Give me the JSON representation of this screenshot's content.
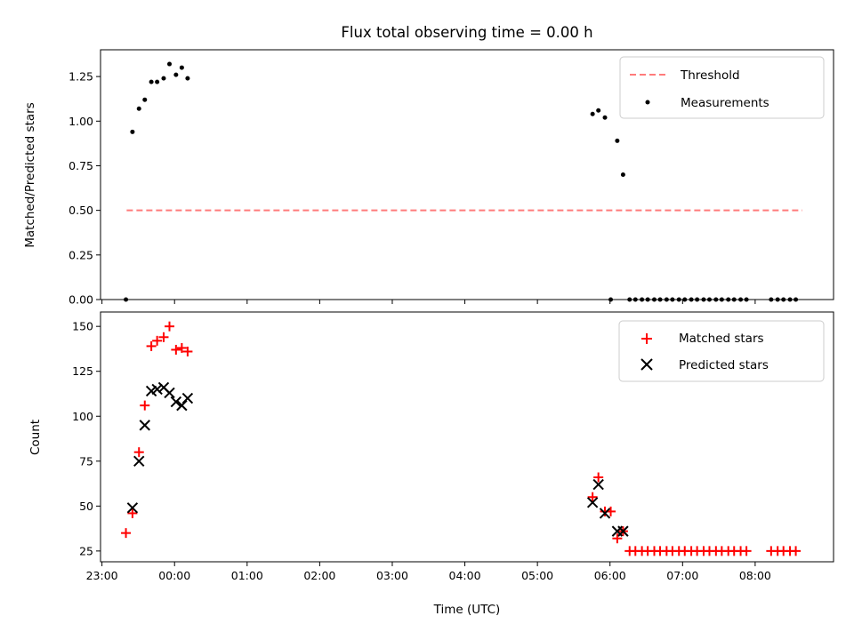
{
  "chart_data": [
    {
      "type": "scatter",
      "title": "Flux total observing time = 0.00 h",
      "xlabel": "",
      "ylabel": "Matched/Predicted stars",
      "x_unit": "hours relative to 00:00 UTC",
      "xlim": [
        -1.02,
        9.08
      ],
      "ylim": [
        0,
        1.4
      ],
      "yticks": [
        0.0,
        0.25,
        0.5,
        0.75,
        1.0,
        1.25
      ],
      "ytick_labels": [
        "0.00",
        "0.25",
        "0.50",
        "0.75",
        "1.00",
        "1.25"
      ],
      "legend": {
        "placement": "upper-right",
        "entries": [
          "Threshold",
          "Measurements"
        ]
      },
      "series": [
        {
          "name": "Threshold",
          "kind": "line",
          "style": "dashed",
          "color": "#ff7b7b",
          "x": [
            -0.66,
            8.65
          ],
          "y": [
            0.5,
            0.5
          ]
        },
        {
          "name": "Measurements",
          "kind": "scatter",
          "marker": "dot",
          "color": "#000000",
          "x": [
            -0.67,
            -0.58,
            -0.49,
            -0.41,
            -0.32,
            -0.24,
            -0.15,
            -0.07,
            0.02,
            0.1,
            0.18,
            5.76,
            5.84,
            5.93,
            6.01,
            6.1,
            6.18,
            6.27,
            6.35,
            6.44,
            6.52,
            6.61,
            6.69,
            6.78,
            6.86,
            6.95,
            7.03,
            7.12,
            7.2,
            7.29,
            7.37,
            7.46,
            7.54,
            7.63,
            7.71,
            7.8,
            7.88,
            8.22,
            8.31,
            8.39,
            8.48,
            8.56
          ],
          "y": [
            0.0,
            0.94,
            1.07,
            1.12,
            1.22,
            1.22,
            1.24,
            1.32,
            1.26,
            1.3,
            1.24,
            1.04,
            1.06,
            1.02,
            0.0,
            0.89,
            0.7,
            0.0,
            0.0,
            0.0,
            0.0,
            0.0,
            0.0,
            0.0,
            0.0,
            0.0,
            0.0,
            0.0,
            0.0,
            0.0,
            0.0,
            0.0,
            0.0,
            0.0,
            0.0,
            0.0,
            0.0,
            0.0,
            0.0,
            0.0,
            0.0,
            0.0
          ]
        }
      ]
    },
    {
      "type": "scatter",
      "title": "",
      "xlabel": "Time (UTC)",
      "ylabel": "Count",
      "x_unit": "hours relative to 00:00 UTC",
      "xlim": [
        -1.02,
        9.08
      ],
      "ylim": [
        19,
        158
      ],
      "yticks": [
        25,
        50,
        75,
        100,
        125,
        150
      ],
      "ytick_labels": [
        "25",
        "50",
        "75",
        "100",
        "125",
        "150"
      ],
      "xticks": [
        -1,
        0,
        1,
        2,
        3,
        4,
        5,
        6,
        7,
        8
      ],
      "xtick_labels": [
        "23:00",
        "00:00",
        "01:00",
        "02:00",
        "03:00",
        "04:00",
        "05:00",
        "06:00",
        "07:00",
        "08:00"
      ],
      "legend": {
        "placement": "upper-right",
        "entries": [
          "Matched stars",
          "Predicted stars"
        ]
      },
      "series": [
        {
          "name": "Matched stars",
          "marker": "plus",
          "color": "#ff0000",
          "x": [
            -0.67,
            -0.58,
            -0.49,
            -0.41,
            -0.32,
            -0.24,
            -0.15,
            -0.07,
            0.02,
            0.1,
            0.18,
            5.76,
            5.84,
            5.93,
            6.01,
            6.1,
            6.18,
            6.27,
            6.35,
            6.44,
            6.52,
            6.61,
            6.69,
            6.78,
            6.86,
            6.95,
            7.03,
            7.12,
            7.2,
            7.29,
            7.37,
            7.46,
            7.54,
            7.63,
            7.71,
            7.8,
            7.88,
            8.22,
            8.31,
            8.39,
            8.48,
            8.56
          ],
          "y": [
            35,
            46,
            80,
            106,
            139,
            142,
            144,
            150,
            137,
            138,
            136,
            55,
            66,
            47,
            47,
            32,
            36,
            25,
            25,
            25,
            25,
            25,
            25,
            25,
            25,
            25,
            25,
            25,
            25,
            25,
            25,
            25,
            25,
            25,
            25,
            25,
            25,
            25,
            25,
            25,
            25,
            25
          ]
        },
        {
          "name": "Predicted stars",
          "marker": "x",
          "color": "#000000",
          "x": [
            -0.58,
            -0.49,
            -0.41,
            -0.32,
            -0.24,
            -0.15,
            -0.07,
            0.02,
            0.1,
            0.18,
            5.76,
            5.84,
            5.93,
            6.1,
            6.18
          ],
          "y": [
            49,
            75,
            95,
            114,
            115,
            116,
            113,
            108,
            106,
            110,
            52,
            62,
            46,
            36,
            36
          ]
        }
      ]
    }
  ]
}
